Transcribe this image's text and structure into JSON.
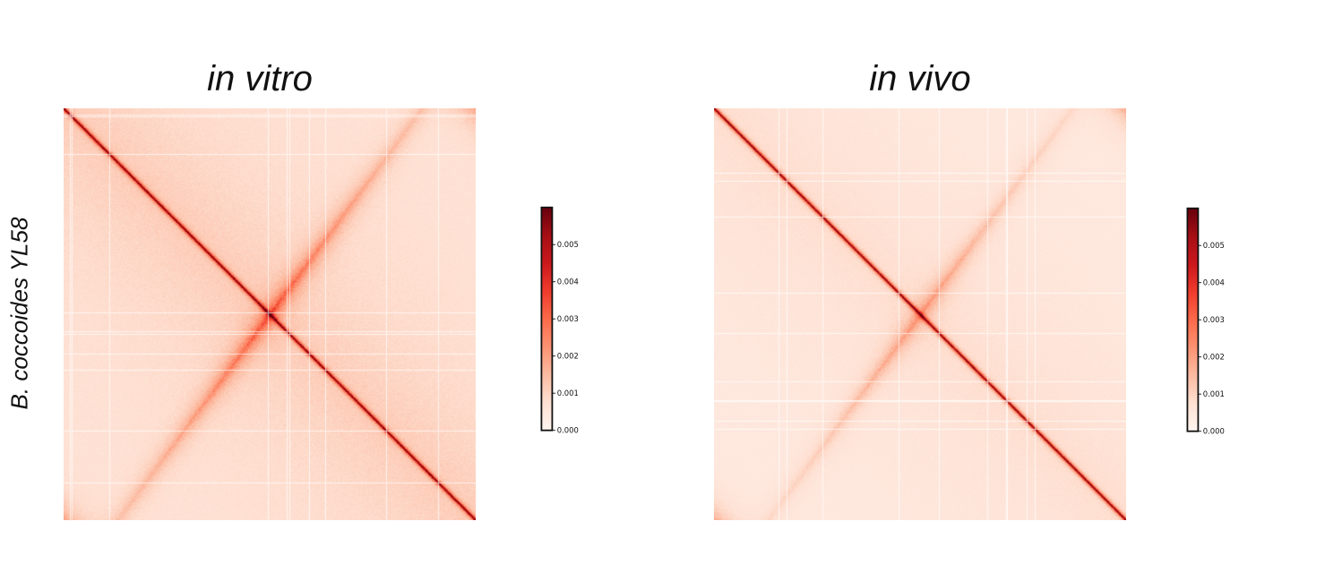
{
  "row_label": "B. coccoides YL58",
  "colorbar": {
    "min": 0.0,
    "max": 0.006,
    "ticks": [
      "0.000",
      "0.001",
      "0.002",
      "0.003",
      "0.004",
      "0.005"
    ],
    "tick_values": [
      0.0,
      0.001,
      0.002,
      0.003,
      0.004,
      0.005
    ],
    "colormap_stops": [
      "#fff5f0",
      "#fee0d2",
      "#fcbba1",
      "#fc9272",
      "#fb6a4a",
      "#ef3b2c",
      "#cb181d",
      "#a50f15",
      "#67000d"
    ]
  },
  "chart_data": [
    {
      "type": "heatmap",
      "title": "in vitro",
      "xlabel": "",
      "ylabel": "",
      "value_range": [
        0.0,
        0.006
      ],
      "features": {
        "diagonal": 0.0055,
        "secondary_anti_diagonal": 0.0025,
        "background": 0.0009
      }
    },
    {
      "type": "heatmap",
      "title": "in vivo",
      "xlabel": "",
      "ylabel": "",
      "value_range": [
        0.0,
        0.006
      ],
      "features": {
        "diagonal": 0.0058,
        "secondary_anti_diagonal": 0.0016,
        "background": 0.0006
      }
    }
  ]
}
